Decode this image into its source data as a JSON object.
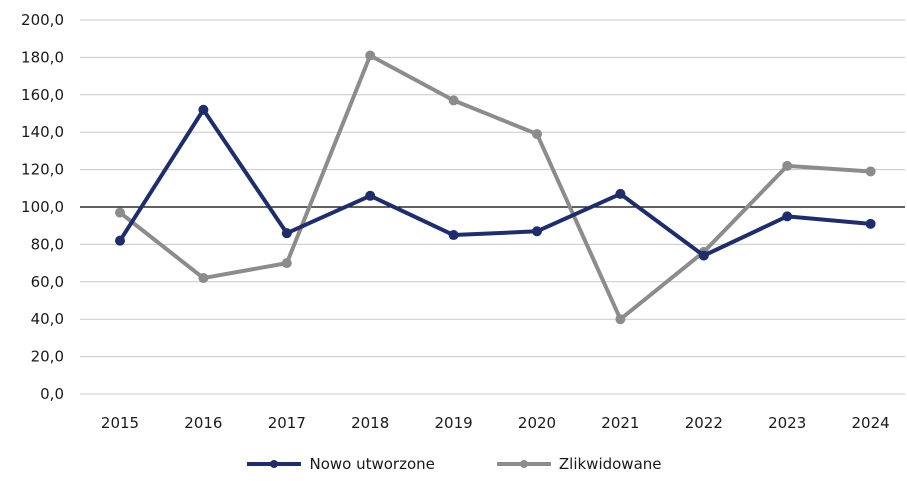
{
  "chart_data": {
    "type": "line",
    "categories": [
      "2015",
      "2016",
      "2017",
      "2018",
      "2019",
      "2020",
      "2021",
      "2022",
      "2023",
      "2024"
    ],
    "y_ticks": [
      "0,0",
      "20,0",
      "40,0",
      "60,0",
      "80,0",
      "100,0",
      "120,0",
      "140,0",
      "160,0",
      "180,0",
      "200,0"
    ],
    "ylim": [
      0,
      200
    ],
    "reference_line": 100,
    "grid": true,
    "legend_position": "bottom",
    "series": [
      {
        "name": "Nowo utworzone",
        "color": "#1f2d6b",
        "values": [
          82,
          152,
          86,
          106,
          85,
          87,
          107,
          74,
          95,
          91
        ]
      },
      {
        "name": "Zlikwidowane",
        "color": "#8c8c8c",
        "values": [
          97,
          62,
          70,
          181,
          157,
          139,
          40,
          76,
          122,
          119
        ]
      }
    ]
  }
}
